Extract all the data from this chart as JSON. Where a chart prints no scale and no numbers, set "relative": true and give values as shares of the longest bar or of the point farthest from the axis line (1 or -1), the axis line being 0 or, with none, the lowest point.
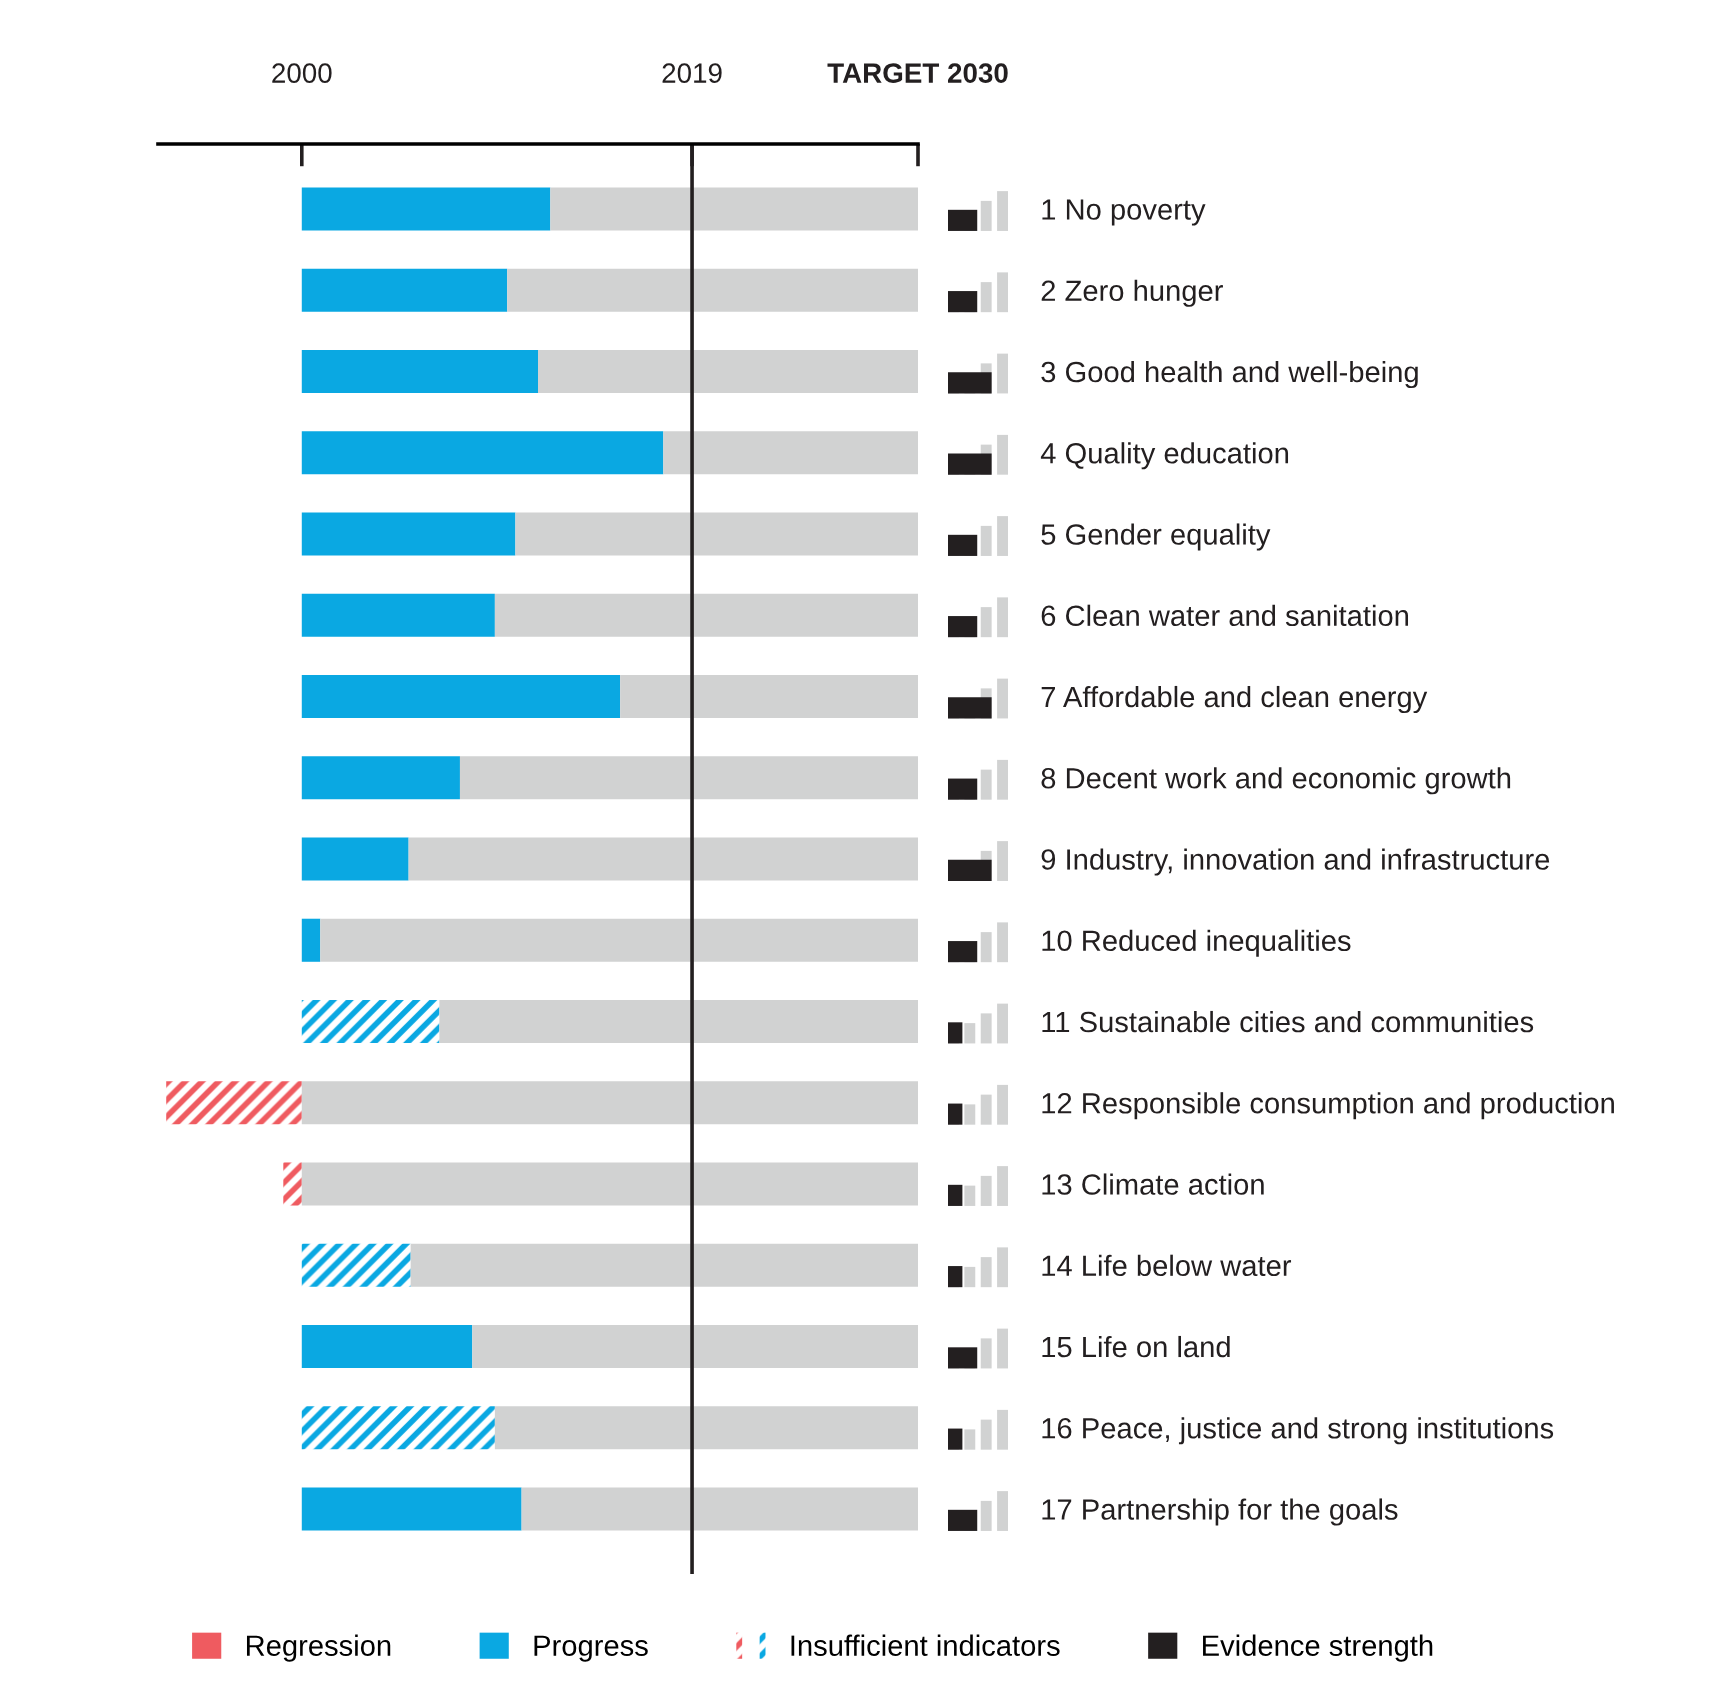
{
  "chart_data": [
    {
      "type": "bar",
      "orientation": "horizontal",
      "categories": [
        "1 No poverty",
        "2 Zero hunger",
        "3 Good health and well-being",
        "4 Quality education",
        "5 Gender equality",
        "6 Clean water and sanitation",
        "7 Affordable and clean energy",
        "8 Decent work and economic growth",
        "9 Industry, innovation and infrastructure",
        "10 Reduced inequalities",
        "11 Sustainable cities and communities",
        "12 Responsible consumption and production",
        "13 Climate action",
        "14 Life below water",
        "15 Life on land",
        "16 Peace, justice and strong institutions",
        "17 Partnership for the goals"
      ],
      "series": [
        {
          "name": "Regression",
          "color": "#ef5b60",
          "values": [
            null,
            null,
            null,
            null,
            null,
            null,
            null,
            null,
            null,
            null,
            null,
            null,
            null,
            null,
            null,
            null,
            null
          ]
        },
        {
          "name": "Progress",
          "color": "#0aa8e2",
          "base": [
            2000,
            2000,
            2000,
            2000,
            2000,
            2000,
            2000,
            2000,
            2000,
            2000,
            null,
            null,
            null,
            null,
            2000,
            null,
            2000
          ],
          "values": [
            12.1,
            10.0,
            11.5,
            17.6,
            10.4,
            9.4,
            15.5,
            7.7,
            5.2,
            0.9,
            null,
            null,
            null,
            null,
            8.3,
            null,
            10.7
          ]
        },
        {
          "name": "Insufficient indicators",
          "colors": [
            "#0aa8e2",
            "#0aa8e2",
            "#0aa8e2",
            "#0aa8e2",
            "#0aa8e2",
            "#0aa8e2",
            "#0aa8e2",
            "#0aa8e2",
            "#0aa8e2",
            "#0aa8e2",
            "#0aa8e2",
            "#ef5b60",
            "#ef5b60",
            "#0aa8e2",
            "#0aa8e2",
            "#0aa8e2",
            "#0aa8e2"
          ],
          "base": [
            null,
            null,
            null,
            null,
            null,
            null,
            null,
            null,
            null,
            null,
            2000,
            2000,
            2000,
            2000,
            null,
            2000,
            null
          ],
          "values": [
            null,
            null,
            null,
            null,
            null,
            null,
            null,
            null,
            null,
            null,
            6.7,
            -6.6,
            -0.9,
            5.3,
            null,
            9.4,
            null
          ]
        },
        {
          "color": "#d1d2d2",
          "base": [
            2012.1,
            2010.0,
            2011.5,
            2017.6,
            2010.4,
            2009.4,
            2015.5,
            2007.7,
            2005.2,
            2000.9,
            2006.7,
            2000,
            2000,
            2005.3,
            2008.3,
            2009.4,
            2010.7
          ],
          "values": [
            17.9,
            20.0,
            18.5,
            12.4,
            19.6,
            20.6,
            14.5,
            22.3,
            24.8,
            29.1,
            23.3,
            30,
            30,
            24.7,
            21.7,
            20.6,
            19.3
          ]
        }
      ],
      "xlim": [
        1993,
        2030
      ],
      "xticks": [
        2000,
        2019,
        {
          "value": 2030,
          "label": "TARGET 2030"
        }
      ],
      "ref_lines": [
        {
          "axis": "x",
          "value": 2019,
          "label": null,
          "color": "#231f20"
        }
      ],
      "grid": false,
      "legend": "bottom"
    },
    {
      "type": "bar",
      "orientation": "horizontal",
      "relative": true,
      "categories": [
        null,
        null,
        null,
        null,
        null,
        null,
        null,
        null,
        null,
        null,
        null,
        null,
        null,
        null,
        null,
        null,
        null
      ],
      "series": [
        {
          "name": "Evidence strength",
          "color": "#231f20",
          "values": [
            0.67,
            0.67,
            1,
            1,
            0.67,
            0.67,
            1,
            0.67,
            1,
            0.67,
            0.33,
            0.33,
            0.33,
            0.33,
            0.67,
            0.33,
            0.67
          ]
        }
      ]
    }
  ]
}
